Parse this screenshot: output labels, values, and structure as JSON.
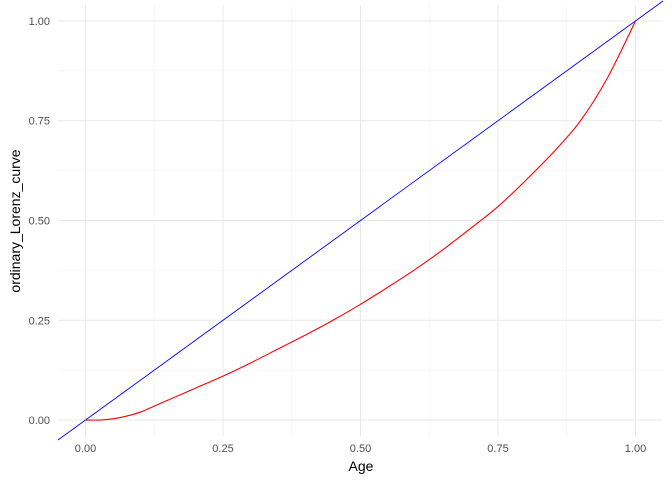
{
  "chart_data": {
    "type": "line",
    "title": "",
    "xlabel": "Age",
    "ylabel": "ordinary_Lorenz_curve",
    "xlim": [
      -0.05,
      1.05
    ],
    "ylim": [
      -0.04,
      1.04
    ],
    "grid": true,
    "x_ticks": [
      0.0,
      0.25,
      0.5,
      0.75,
      1.0
    ],
    "x_tick_labels": [
      "0.00",
      "0.25",
      "0.50",
      "0.75",
      "1.00"
    ],
    "y_ticks": [
      0.0,
      0.25,
      0.5,
      0.75,
      1.0
    ],
    "y_tick_labels": [
      "0.00",
      "0.25",
      "0.50",
      "0.75",
      "1.00"
    ],
    "reference_line": {
      "slope": 1,
      "intercept": 0,
      "color": "#0000ff"
    },
    "series": [
      {
        "color": "#ff0000",
        "x": [
          0.0,
          0.025,
          0.05,
          0.075,
          0.1,
          0.125,
          0.15,
          0.2,
          0.25,
          0.3,
          0.35,
          0.4,
          0.45,
          0.5,
          0.55,
          0.6,
          0.65,
          0.7,
          0.75,
          0.8,
          0.85,
          0.9,
          0.95,
          1.0
        ],
        "y": [
          0.0,
          0.0,
          0.003,
          0.01,
          0.02,
          0.035,
          0.05,
          0.08,
          0.11,
          0.143,
          0.178,
          0.213,
          0.25,
          0.29,
          0.333,
          0.378,
          0.427,
          0.48,
          0.535,
          0.6,
          0.67,
          0.75,
          0.86,
          1.0
        ]
      }
    ]
  }
}
